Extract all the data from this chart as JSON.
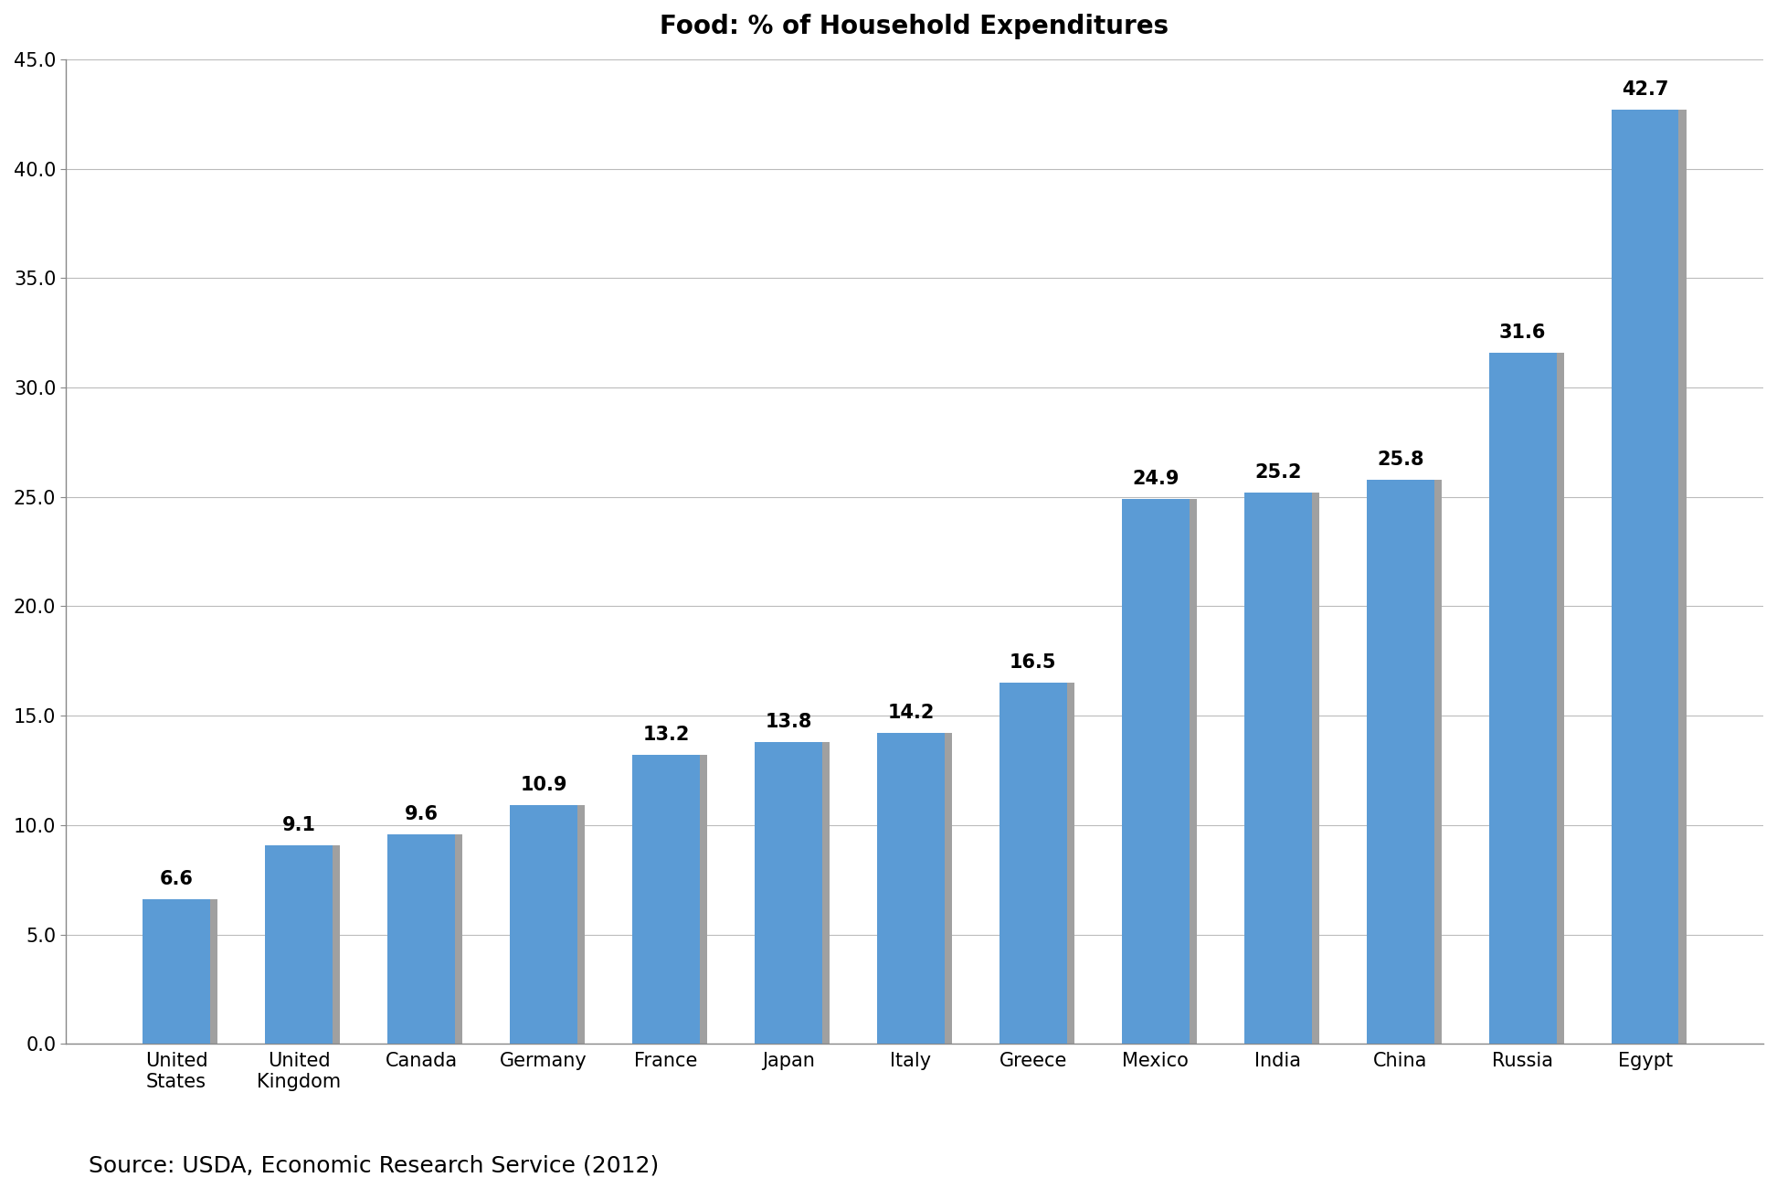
{
  "title": "Food: % of Household Expenditures",
  "source_text": "Source: USDA, Economic Research Service (2012)",
  "categories": [
    "United\nStates",
    "United\nKingdom",
    "Canada",
    "Germany",
    "France",
    "Japan",
    "Italy",
    "Greece",
    "Mexico",
    "India",
    "China",
    "Russia",
    "Egypt"
  ],
  "values": [
    6.6,
    9.1,
    9.6,
    10.9,
    13.2,
    13.8,
    14.2,
    16.5,
    24.9,
    25.2,
    25.8,
    31.6,
    42.7
  ],
  "bar_color": "#5b9bd5",
  "bar_shadow_color": "#a0a0a0",
  "ylim": [
    0,
    45.0
  ],
  "yticks": [
    0.0,
    5.0,
    10.0,
    15.0,
    20.0,
    25.0,
    30.0,
    35.0,
    40.0,
    45.0
  ],
  "title_fontsize": 20,
  "tick_fontsize": 15,
  "source_fontsize": 18,
  "bar_width": 0.55,
  "background_color": "#ffffff",
  "grid_color": "#bbbbbb",
  "annotation_fontsize": 15,
  "spine_color": "#888888"
}
